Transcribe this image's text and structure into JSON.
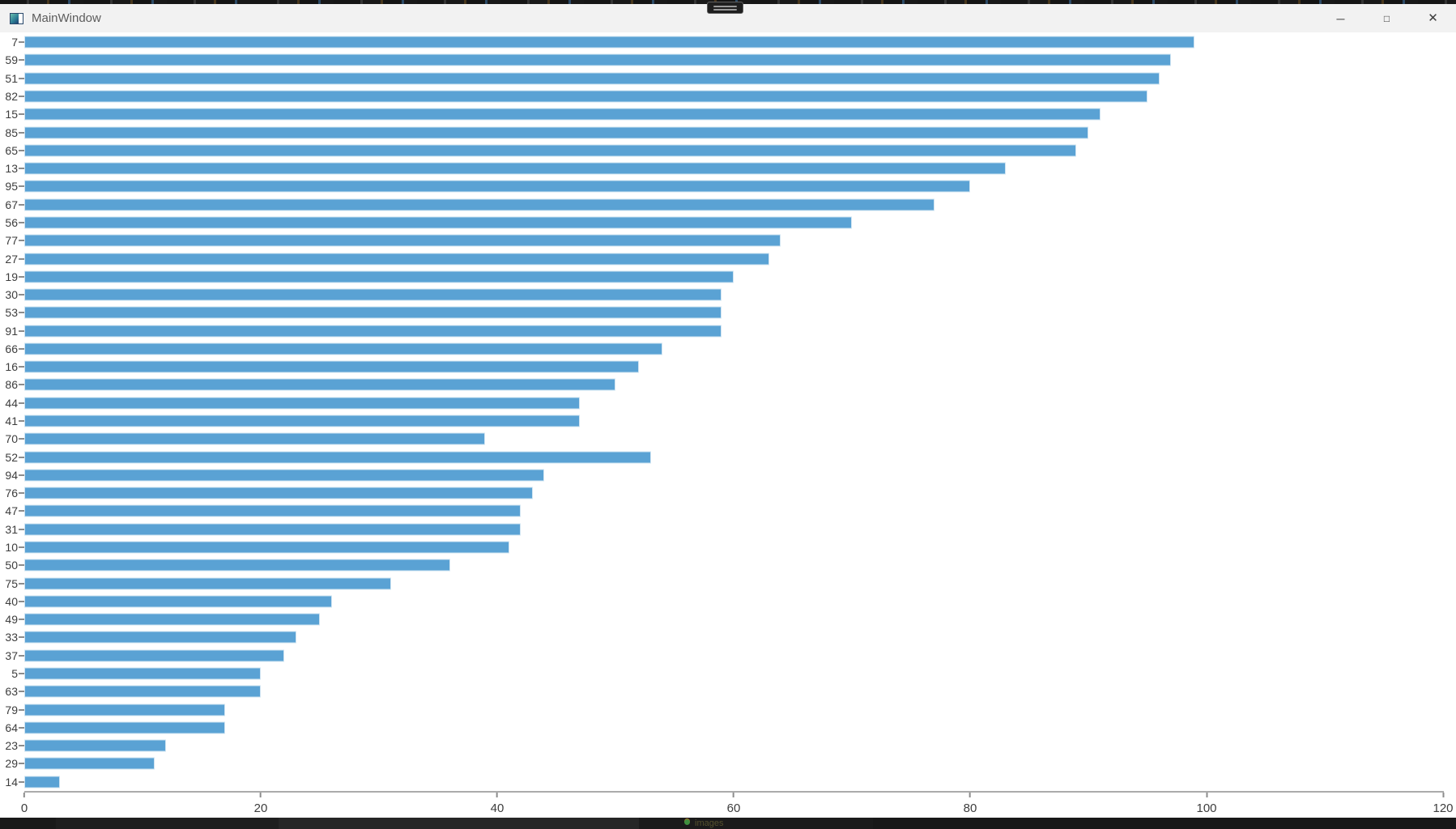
{
  "screen": {
    "bottom_text": "images"
  },
  "window": {
    "title": "MainWindow",
    "controls": {
      "minimize_glyph": "─",
      "maximize_glyph": "□",
      "close_glyph": "✕"
    }
  },
  "icons": {
    "app": "app-window-icon",
    "minimize": "minimize-icon",
    "maximize": "maximize-icon",
    "close": "close-icon",
    "grip": "window-grip-icon"
  },
  "chart_data": {
    "type": "bar",
    "orientation": "horizontal",
    "title": "",
    "xlabel": "",
    "ylabel": "",
    "categories": [
      "7",
      "59",
      "51",
      "82",
      "15",
      "85",
      "65",
      "13",
      "95",
      "67",
      "56",
      "77",
      "27",
      "19",
      "30",
      "53",
      "91",
      "66",
      "16",
      "86",
      "44",
      "41",
      "70",
      "52",
      "94",
      "76",
      "47",
      "31",
      "10",
      "50",
      "75",
      "40",
      "49",
      "33",
      "37",
      "5",
      "63",
      "79",
      "64",
      "23",
      "29",
      "14"
    ],
    "values": [
      99,
      97,
      96,
      95,
      91,
      90,
      89,
      83,
      80,
      77,
      70,
      64,
      63,
      60,
      59,
      59,
      59,
      54,
      52,
      50,
      47,
      47,
      39,
      53,
      44,
      43,
      42,
      42,
      41,
      36,
      31,
      26,
      25,
      23,
      22,
      20,
      20,
      17,
      17,
      12,
      11,
      3
    ],
    "xlim": [
      0,
      120
    ],
    "x_ticks": [
      0,
      20,
      40,
      60,
      80,
      100,
      120
    ],
    "bar_color": "#5aa2d4",
    "bar_edge_color": "#cfe4f2",
    "grid": false,
    "legend": null
  }
}
